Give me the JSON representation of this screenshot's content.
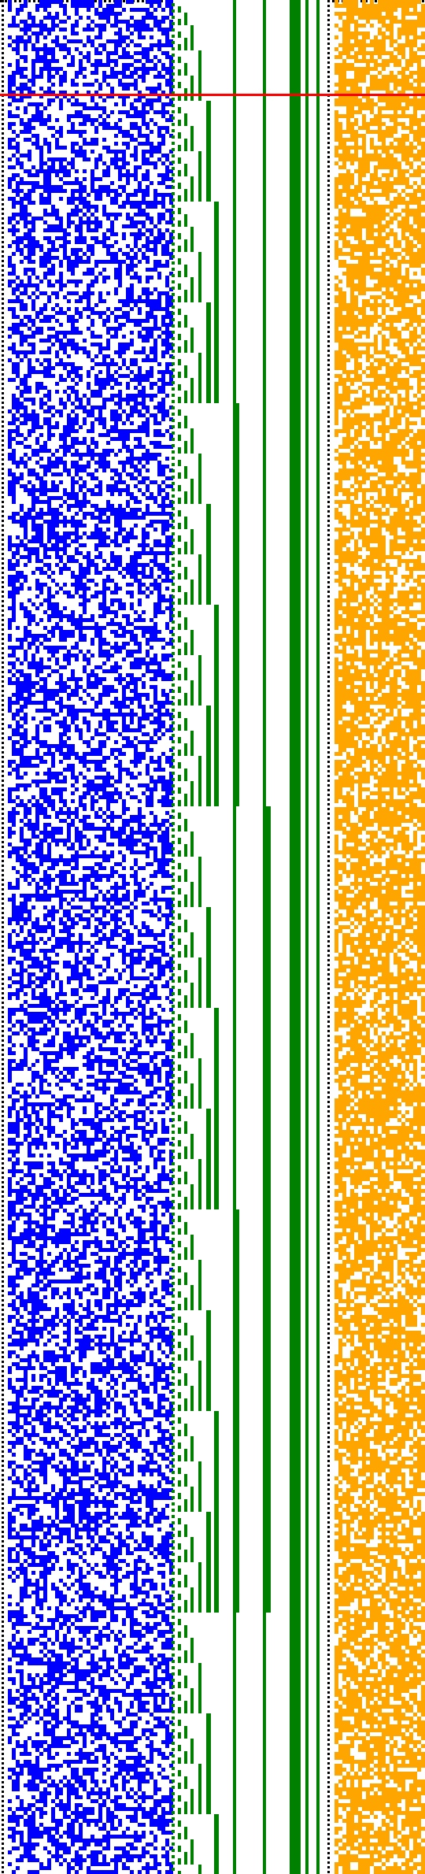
{
  "colors": {
    "background": "#ffffff",
    "blue_cells": "#0000ff",
    "green_marks": "#008000",
    "orange_cells": "#ffa500",
    "highlight_line": "#ff0000",
    "border_dots": "#000000"
  },
  "panels": [
    {
      "name": "blue-bit-grid",
      "kind": "random-bit-matrix",
      "color_key": "blue_cells",
      "fill_ratio": 0.5
    },
    {
      "name": "green-counter-columns",
      "kind": "binary-counter-bars",
      "color_key": "green_marks",
      "bit_count": 10
    },
    {
      "name": "orange-bit-grid",
      "kind": "random-bit-matrix",
      "color_key": "orange_cells",
      "fill_ratio": 0.7
    }
  ],
  "highlight": {
    "kind": "horizontal-rule",
    "color_key": "highlight_line"
  }
}
